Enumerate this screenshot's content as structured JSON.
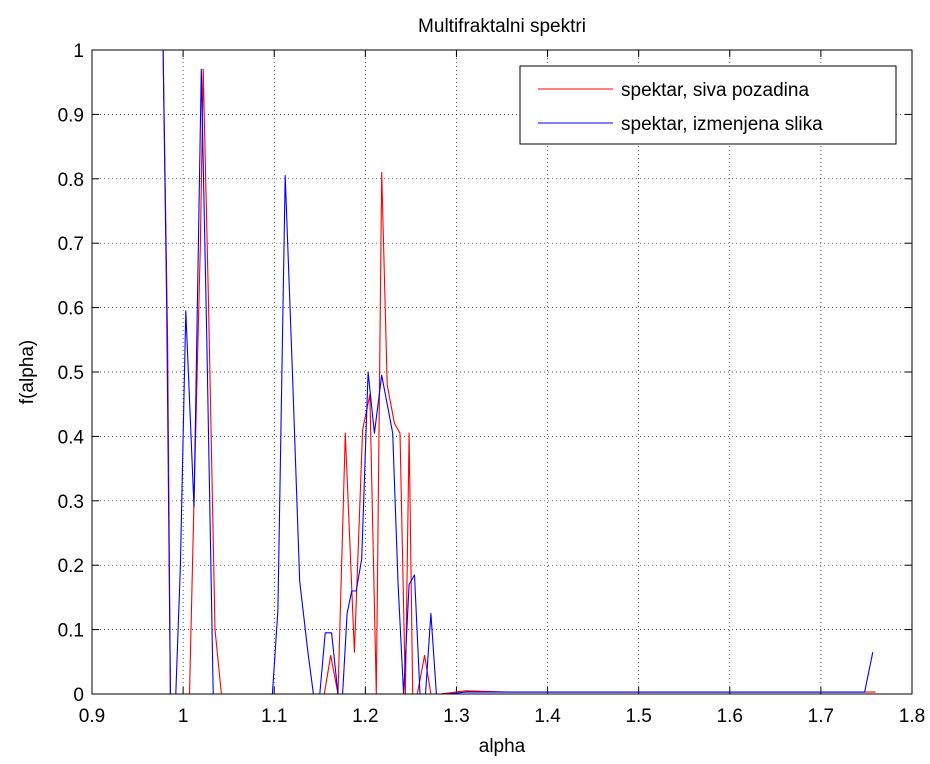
{
  "chart_data": {
    "type": "line",
    "title": "Multifraktalni spektri",
    "xlabel": "alpha",
    "ylabel": "f(alpha)",
    "xlim": [
      0.9,
      1.8
    ],
    "ylim": [
      0,
      1
    ],
    "xticks": [
      0.9,
      1.0,
      1.1,
      1.2,
      1.3,
      1.4,
      1.5,
      1.6,
      1.7,
      1.8
    ],
    "xtick_labels": [
      "0.9",
      "1",
      "1.1",
      "1.2",
      "1.3",
      "1.4",
      "1.5",
      "1.6",
      "1.7",
      "1.8"
    ],
    "yticks": [
      0,
      0.1,
      0.2,
      0.3,
      0.4,
      0.5,
      0.6,
      0.7,
      0.8,
      0.9,
      1.0
    ],
    "ytick_labels": [
      "0",
      "0.1",
      "0.2",
      "0.3",
      "0.4",
      "0.5",
      "0.6",
      "0.7",
      "0.8",
      "0.9",
      "1"
    ],
    "grid": true,
    "legend_position": "top-right",
    "series": [
      {
        "name": "spektar, siva pozadina",
        "color": "#ff0000",
        "points": [
          [
            0.978,
            1.0
          ],
          [
            0.983,
            0.55
          ],
          [
            0.986,
            0.0
          ],
          [
            1.0,
            0.0
          ],
          [
            1.007,
            0.0
          ],
          [
            1.012,
            0.3
          ],
          [
            1.019,
            0.7
          ],
          [
            1.022,
            0.97
          ],
          [
            1.028,
            0.6
          ],
          [
            1.035,
            0.1
          ],
          [
            1.042,
            0.0
          ],
          [
            1.09,
            0.0
          ],
          [
            1.14,
            0.0
          ],
          [
            1.155,
            0.0
          ],
          [
            1.162,
            0.06
          ],
          [
            1.17,
            0.0
          ],
          [
            1.178,
            0.405
          ],
          [
            1.188,
            0.065
          ],
          [
            1.197,
            0.41
          ],
          [
            1.205,
            0.465
          ],
          [
            1.212,
            0.0
          ],
          [
            1.218,
            0.81
          ],
          [
            1.224,
            0.48
          ],
          [
            1.232,
            0.42
          ],
          [
            1.238,
            0.405
          ],
          [
            1.244,
            0.0
          ],
          [
            1.248,
            0.405
          ],
          [
            1.252,
            0.0
          ],
          [
            1.257,
            0.0
          ],
          [
            1.265,
            0.06
          ],
          [
            1.272,
            0.0
          ],
          [
            1.282,
            0.0
          ],
          [
            1.31,
            0.005
          ],
          [
            1.36,
            0.003
          ],
          [
            1.76,
            0.003
          ]
        ]
      },
      {
        "name": "spektar, izmenjena slika",
        "color": "#0000ff",
        "points": [
          [
            0.978,
            1.0
          ],
          [
            0.982,
            0.6
          ],
          [
            0.986,
            0.0
          ],
          [
            0.992,
            0.0
          ],
          [
            0.997,
            0.2
          ],
          [
            1.003,
            0.595
          ],
          [
            1.012,
            0.29
          ],
          [
            1.02,
            0.97
          ],
          [
            1.026,
            0.55
          ],
          [
            1.033,
            0.0
          ],
          [
            1.052,
            0.0
          ],
          [
            1.078,
            0.0
          ],
          [
            1.098,
            0.0
          ],
          [
            1.104,
            0.13
          ],
          [
            1.112,
            0.805
          ],
          [
            1.12,
            0.5
          ],
          [
            1.128,
            0.175
          ],
          [
            1.137,
            0.065
          ],
          [
            1.143,
            0.0
          ],
          [
            1.15,
            0.0
          ],
          [
            1.156,
            0.095
          ],
          [
            1.163,
            0.095
          ],
          [
            1.17,
            0.0
          ],
          [
            1.175,
            0.0
          ],
          [
            1.18,
            0.125
          ],
          [
            1.185,
            0.16
          ],
          [
            1.19,
            0.16
          ],
          [
            1.196,
            0.21
          ],
          [
            1.203,
            0.5
          ],
          [
            1.21,
            0.405
          ],
          [
            1.218,
            0.495
          ],
          [
            1.23,
            0.405
          ],
          [
            1.236,
            0.17
          ],
          [
            1.242,
            0.0
          ],
          [
            1.248,
            0.17
          ],
          [
            1.254,
            0.185
          ],
          [
            1.26,
            0.0
          ],
          [
            1.266,
            0.0
          ],
          [
            1.272,
            0.125
          ],
          [
            1.278,
            0.0
          ],
          [
            1.29,
            0.0
          ],
          [
            1.31,
            0.003
          ],
          [
            1.74,
            0.003
          ],
          [
            1.748,
            0.003
          ],
          [
            1.757,
            0.065
          ]
        ]
      }
    ]
  }
}
